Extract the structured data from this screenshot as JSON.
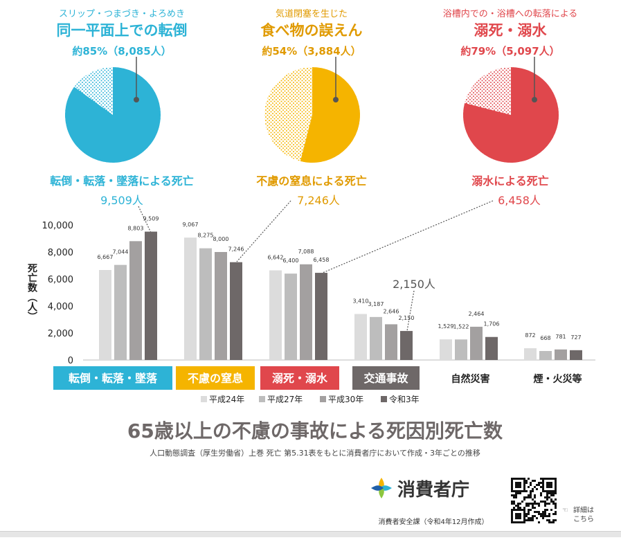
{
  "callouts": [
    {
      "key": "fall",
      "top": "スリップ・つまづき・よろめき",
      "main": "同一平面上での転倒",
      "pct": "約85%（8,085人）",
      "bottom": "転倒・転落・墜落による死亡",
      "total": "9,509人",
      "color": "#2db3d6",
      "share": 0.85
    },
    {
      "key": "choke",
      "top": "気道閉塞を生じた",
      "main": "食べ物の誤えん",
      "pct": "約54%（3,884人）",
      "bottom": "不慮の窒息による死亡",
      "total": "7,246人",
      "color": "#f5b400",
      "share": 0.54
    },
    {
      "key": "drown",
      "top": "浴槽内での・浴槽への転落による",
      "main": "溺死・溺水",
      "pct": "約79%（5,097人）",
      "bottom": "溺水による死亡",
      "total": "6,458人",
      "color": "#e0474c",
      "share": 0.79
    }
  ],
  "chart_data": {
    "type": "bar",
    "ylabel": "死亡数（人）",
    "ylim": [
      0,
      10000
    ],
    "yticks": [
      "0",
      "2,000",
      "4,000",
      "6,000",
      "8,000",
      "10,000"
    ],
    "categories": [
      "転倒・転落・墜落",
      "不慮の窒息",
      "溺死・溺水",
      "交通事故",
      "自然災害",
      "煙・火災等"
    ],
    "category_colors": [
      "#2db3d6",
      "#f5b400",
      "#e0474c",
      "#6e6868",
      "",
      ""
    ],
    "series": [
      {
        "name": "平成24年",
        "color": "#dcdcdc",
        "values": [
          6667,
          9067,
          6642,
          3410,
          1529,
          872
        ],
        "labels": [
          "6,667",
          "9,067",
          "6,642",
          "3,410",
          "1,529",
          "872"
        ]
      },
      {
        "name": "平成27年",
        "color": "#bdbdbd",
        "values": [
          7044,
          8275,
          6400,
          3187,
          1522,
          668
        ],
        "labels": [
          "7,044",
          "8,275",
          "6,400",
          "3,187",
          "1,522",
          "668"
        ]
      },
      {
        "name": "平成30年",
        "color": "#a3a0a0",
        "values": [
          8803,
          8000,
          7088,
          2646,
          2464,
          781
        ],
        "labels": [
          "8,803",
          "8,000",
          "7,088",
          "2,646",
          "2,464",
          "781"
        ]
      },
      {
        "name": "令和3年",
        "color": "#6e6868",
        "values": [
          9509,
          7246,
          6458,
          2150,
          1706,
          727
        ],
        "labels": [
          "9,509",
          "7,246",
          "6,458",
          "2,150",
          "1,706",
          "727"
        ]
      }
    ],
    "extra_annotation": "2,150人",
    "title": "65歳以上の不慮の事故による死因別死亡数",
    "subtitle": "人口動態調査（厚生労働省）上巻 死亡 第5.31表をもとに消費者庁において作成・3年ごとの推移"
  },
  "footer": {
    "logo": "消費者庁",
    "dept": "消費者安全課（令和4年12月作成）",
    "detail_line1": "詳細は",
    "detail_line2": "こちら"
  }
}
